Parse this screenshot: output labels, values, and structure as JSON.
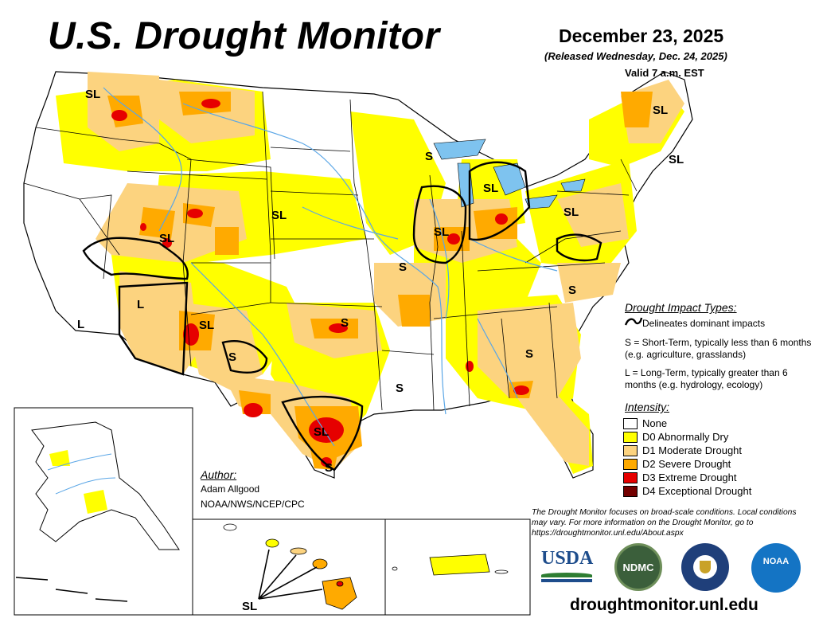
{
  "header": {
    "title": "U.S. Drought Monitor",
    "date": "December 23, 2025",
    "released": "(Released Wednesday, Dec. 24, 2025)",
    "valid": "Valid 7 a.m. EST"
  },
  "impact_legend": {
    "heading": "Drought Impact Types:",
    "line_label": "Delineates dominant impacts",
    "short_term": "S = Short-Term, typically less than 6 months (e.g. agriculture, grasslands)",
    "long_term": "L = Long-Term, typically greater than 6 months (e.g. hydrology, ecology)"
  },
  "intensity_legend": {
    "heading": "Intensity:",
    "items": [
      {
        "label": "None",
        "color": "#ffffff"
      },
      {
        "label": "D0 Abnormally Dry",
        "color": "#ffff00"
      },
      {
        "label": "D1 Moderate Drought",
        "color": "#fcd37f"
      },
      {
        "label": "D2 Severe Drought",
        "color": "#ffaa00"
      },
      {
        "label": "D3 Extreme Drought",
        "color": "#e60000"
      },
      {
        "label": "D4 Exceptional Drought",
        "color": "#730000"
      }
    ]
  },
  "author": {
    "heading": "Author:",
    "name": "Adam Allgood",
    "org": "NOAA/NWS/NCEP/CPC"
  },
  "note": "The Drought Monitor focuses on broad-scale conditions. Local conditions may vary. For more information on the Drought Monitor, go to https://droughtmonitor.unl.edu/About.aspx",
  "website": "droughtmonitor.unl.edu",
  "logos": {
    "usda": "USDA",
    "ndmc": "NDMC",
    "noaa": "NOAA"
  },
  "map_labels": {
    "sl": "SL",
    "s": "S",
    "l": "L"
  },
  "colors": {
    "none": "#ffffff",
    "d0": "#ffff00",
    "d1": "#fcd37f",
    "d2": "#ffaa00",
    "d3": "#e60000",
    "d4": "#730000",
    "water": "#5aa6e6"
  }
}
